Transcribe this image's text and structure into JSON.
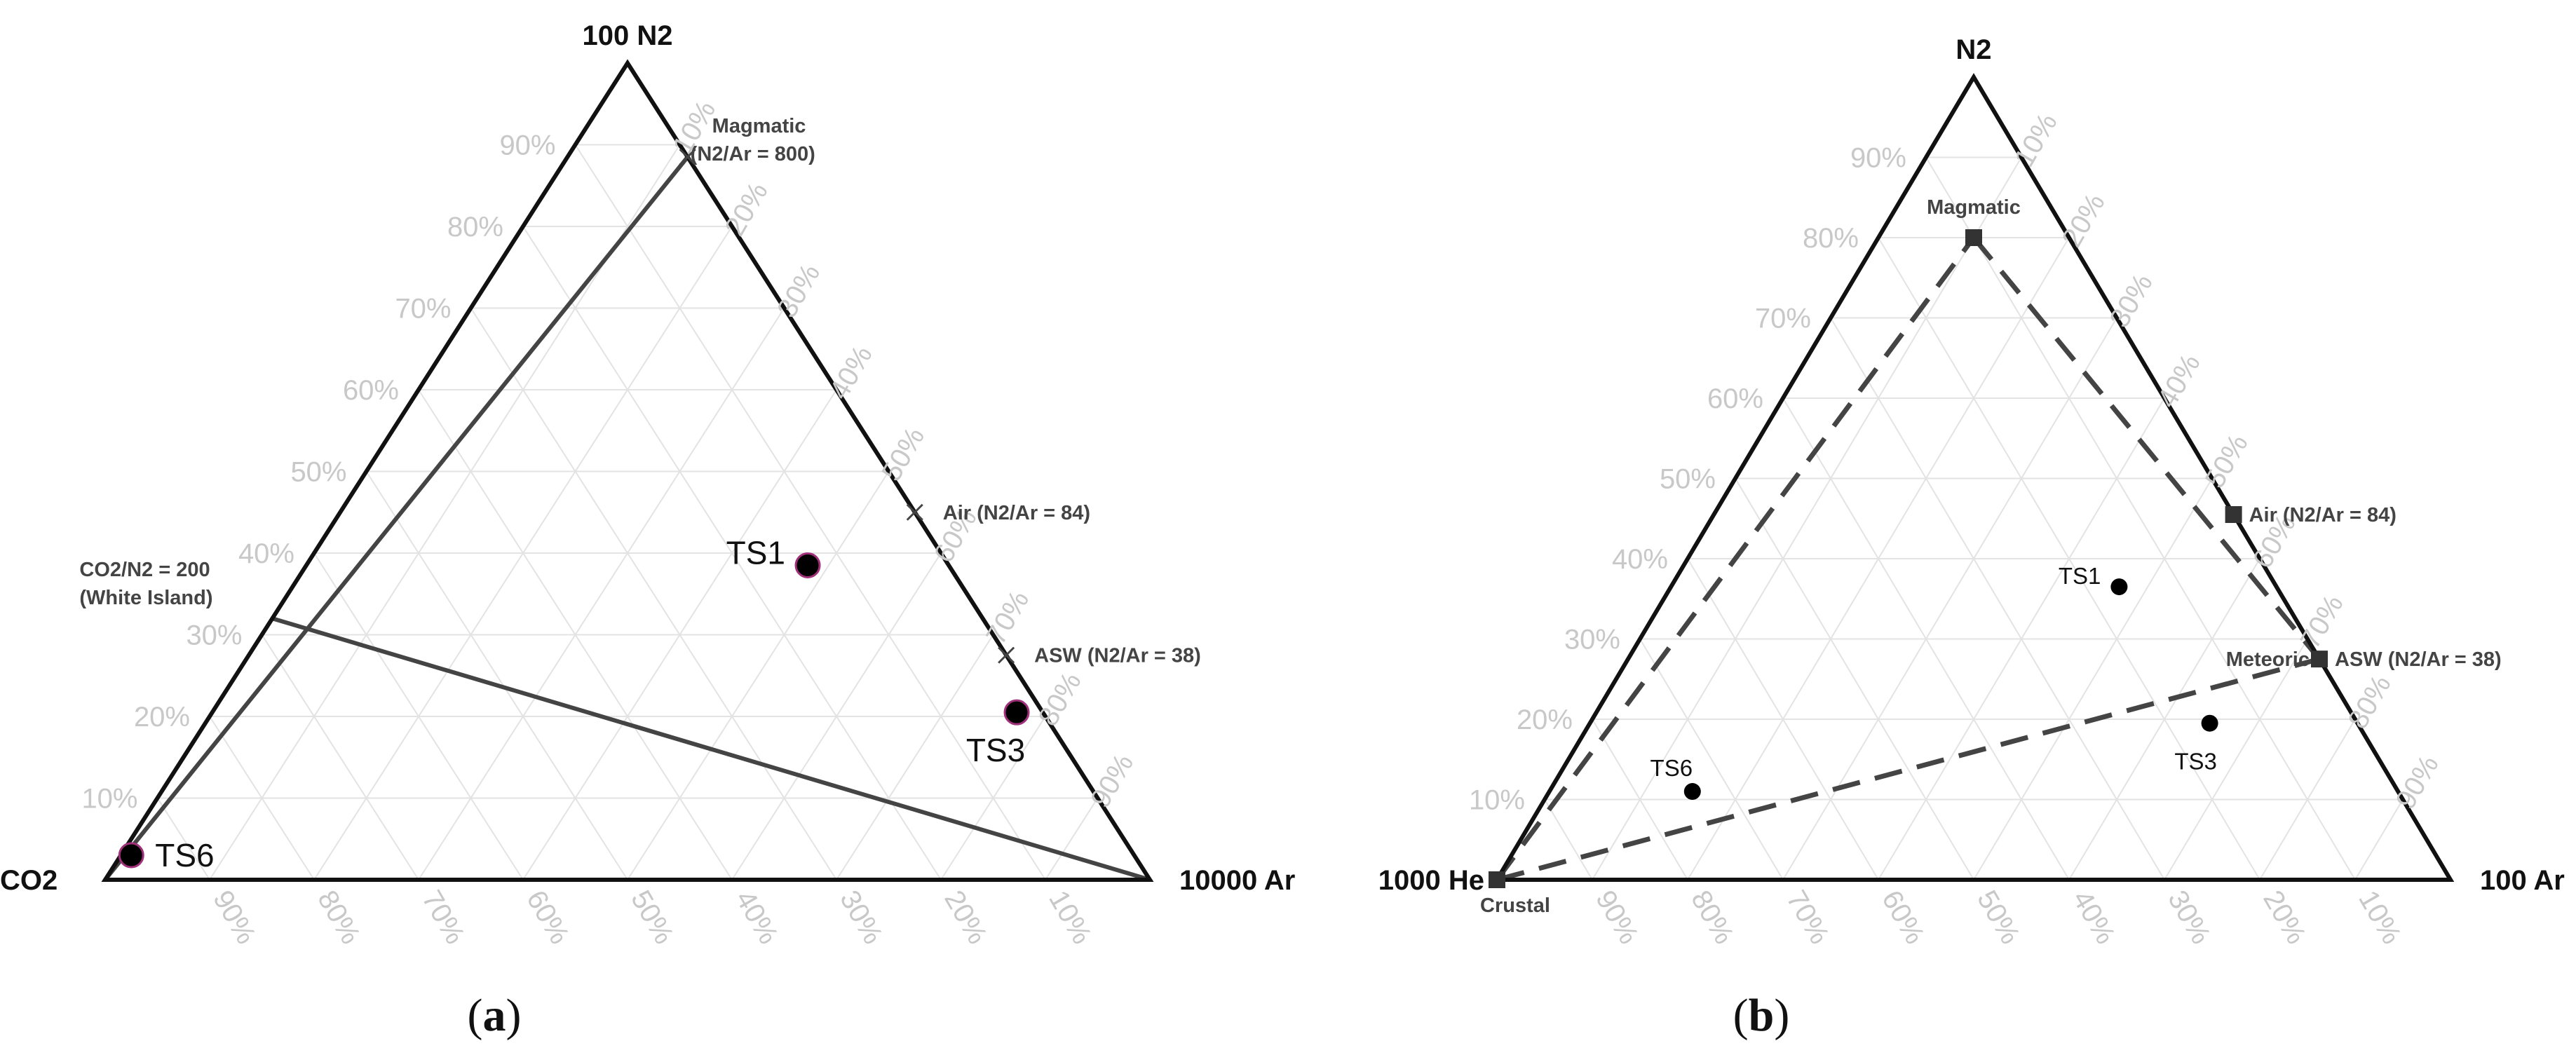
{
  "chart_data": [
    {
      "type": "ternary",
      "caption_open": "(",
      "caption_letter": "a",
      "caption_close": ")",
      "vertices": {
        "top": "100 N2",
        "left": "CO2",
        "right": "10000 Ar"
      },
      "ticks": [
        "10%",
        "20%",
        "30%",
        "40%",
        "50%",
        "60%",
        "70%",
        "80%",
        "90%"
      ],
      "axis_ticks_left_values": [
        0.1,
        0.2,
        0.3,
        0.4,
        0.5,
        0.6,
        0.7,
        0.8,
        0.9
      ],
      "points": [
        {
          "label": "TS1",
          "top": 0.385,
          "right": 0.48
        },
        {
          "label": "TS3",
          "top": 0.205,
          "right": 0.77
        },
        {
          "label": "TS6",
          "top": 0.03,
          "right": 0.01
        }
      ],
      "markers": [
        {
          "label": "Air (N2/Ar = 84)",
          "top": 0.45,
          "right": 0.55
        },
        {
          "label": "ASW (N2/Ar = 38)",
          "top": 0.275,
          "right": 0.725
        },
        {
          "label_lines": [
            "Magmatic",
            "(N2/Ar = 800)"
          ],
          "top": 0.885,
          "right": 0.115
        }
      ],
      "lines": [
        {
          "from": {
            "top": 0,
            "right": 0
          },
          "to": {
            "top": 0.885,
            "right": 0.115
          }
        },
        {
          "from": {
            "top": 0.32,
            "right": 0
          },
          "to": {
            "top": 0,
            "right": 1
          },
          "label_lines": [
            "CO2/N2 = 200",
            "(White Island)"
          ]
        }
      ]
    },
    {
      "type": "ternary",
      "caption_open": "(",
      "caption_letter": "b",
      "caption_close": ")",
      "vertices": {
        "top": "N2",
        "left": "1000 He",
        "right": "100 Ar"
      },
      "ticks": [
        "10%",
        "20%",
        "30%",
        "40%",
        "50%",
        "60%",
        "70%",
        "80%",
        "90%"
      ],
      "points": [
        {
          "label": "TS1",
          "top": 0.365,
          "right": 0.47
        },
        {
          "label": "TS3",
          "top": 0.195,
          "right": 0.65
        },
        {
          "label": "TS6",
          "top": 0.11,
          "right": 0.15
        }
      ],
      "endmembers": [
        {
          "label": "Magmatic",
          "top": 0.8,
          "right": 0.1
        },
        {
          "label": "Air (N2/Ar = 84)",
          "top": 0.455,
          "right": 0.545
        },
        {
          "label": "ASW (N2/Ar = 38)",
          "top": 0.275,
          "right": 0.725
        },
        {
          "label": "Crustal",
          "top": 0,
          "right": 0
        }
      ],
      "meteoric_label": "Meteoric",
      "dashed_lines": [
        {
          "from": "Crustal",
          "to": "Magmatic"
        },
        {
          "from": "Magmatic",
          "to": "ASW (N2/Ar = 38)"
        },
        {
          "from": "Crustal",
          "to": "ASW (N2/Ar = 38)"
        }
      ]
    }
  ]
}
